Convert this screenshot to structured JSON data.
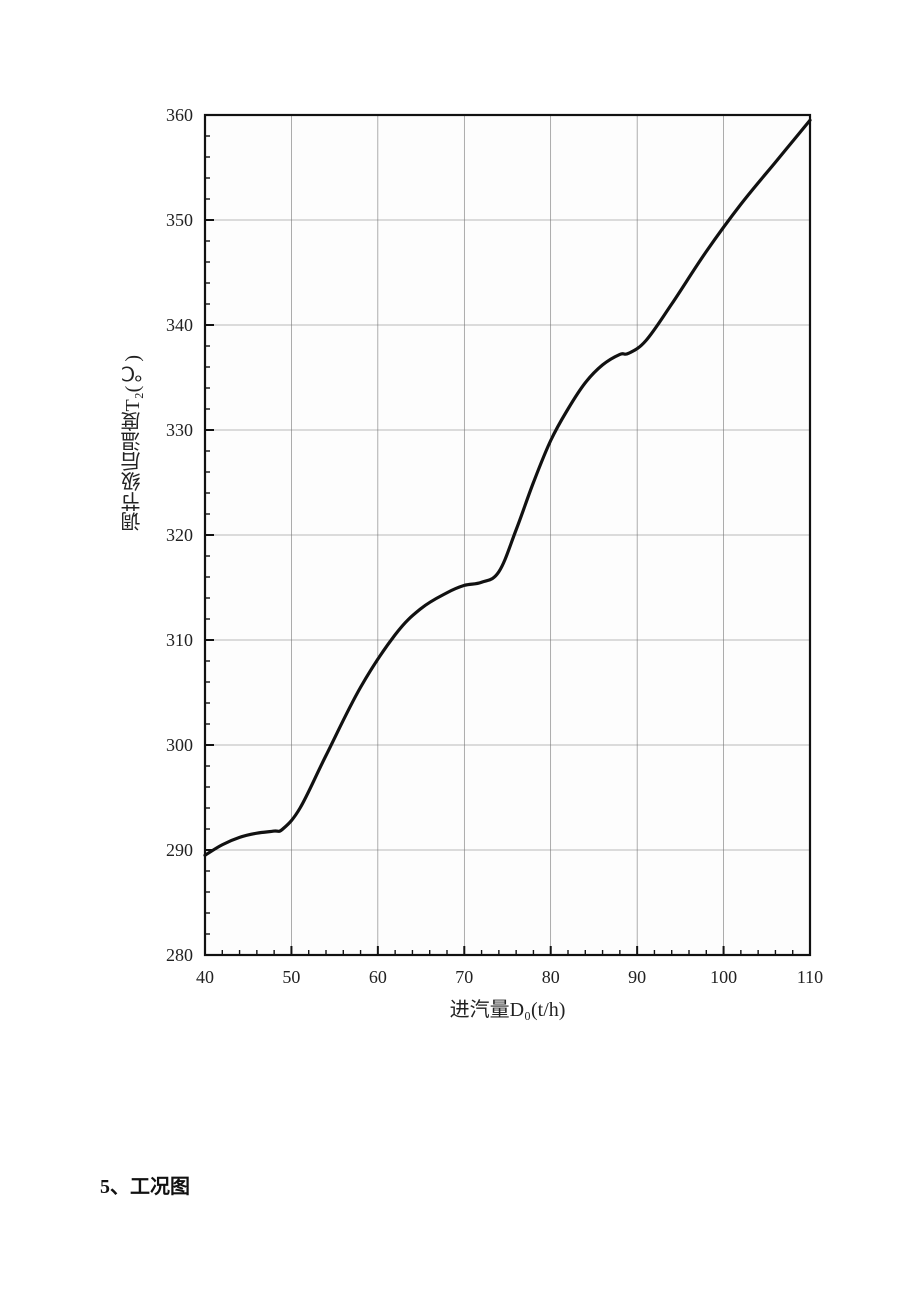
{
  "chart": {
    "type": "line",
    "xlabel": "进汽量D₀(t/h)",
    "ylabel": "调节级后温度T₂(℃)",
    "xlabel_fontsize": 20,
    "ylabel_fontsize": 20,
    "tick_fontsize": 18,
    "background_color": "#ffffff",
    "plot_bg_color": "#fdfdfd",
    "grid_color": "#777777",
    "grid_width": 0.6,
    "frame_color": "#111111",
    "frame_width": 2.2,
    "line_color": "#111111",
    "line_width": 3.2,
    "xlim": [
      40,
      110
    ],
    "ylim": [
      280,
      360
    ],
    "xtick_step": 10,
    "ytick_step": 10,
    "xticks": [
      40,
      50,
      60,
      70,
      80,
      90,
      100,
      110
    ],
    "yticks": [
      280,
      290,
      300,
      310,
      320,
      330,
      340,
      350,
      360
    ],
    "minor_ticks_per_major_x": 5,
    "minor_ticks_per_major_y": 5,
    "tick_style": "inside",
    "major_tick_len": 9,
    "minor_tick_len": 5,
    "data": {
      "x": [
        40,
        42,
        44,
        46,
        48,
        49,
        51,
        54,
        58,
        62,
        65,
        68,
        70,
        72,
        74,
        76,
        78,
        80,
        82,
        84,
        86,
        88,
        89,
        91,
        94,
        98,
        102,
        106,
        108,
        110
      ],
      "y": [
        289.5,
        290.5,
        291.2,
        291.6,
        291.8,
        292.0,
        294.0,
        299.0,
        305.5,
        310.5,
        313.0,
        314.5,
        315.2,
        315.5,
        316.5,
        320.5,
        325.0,
        329.0,
        332.0,
        334.5,
        336.2,
        337.2,
        337.3,
        338.5,
        342.0,
        347.0,
        351.5,
        355.5,
        357.5,
        359.5
      ]
    }
  },
  "caption": "5、工况图"
}
